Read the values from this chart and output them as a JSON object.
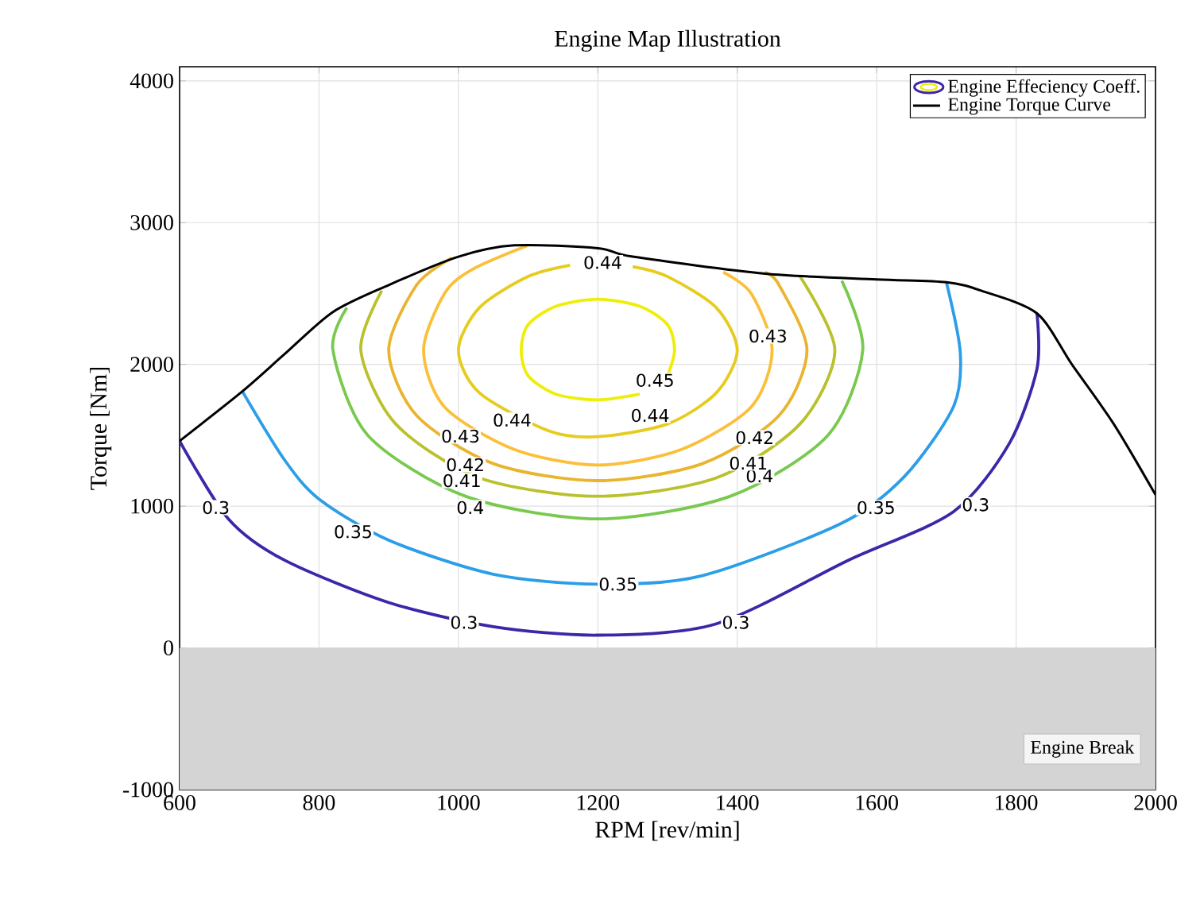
{
  "chart_data": {
    "type": "line",
    "title": "Engine Map Illustration",
    "xlabel": "RPM [rev/min]",
    "ylabel": "Torque [Nm]",
    "xlim": [
      600,
      2000
    ],
    "ylim": [
      -1000,
      4100
    ],
    "xticks": [
      600,
      800,
      1000,
      1200,
      1400,
      1600,
      1800,
      2000
    ],
    "yticks": [
      -1000,
      0,
      1000,
      2000,
      3000,
      4000
    ],
    "grid": true,
    "legend": "top right",
    "series": [
      {
        "name": "Engine Effeciency Coeff.",
        "color": "#3e26a8",
        "x": [
          600,
          670,
          750,
          900,
          1050,
          1200,
          1370,
          1560,
          1710,
          1790,
          1830,
          1830
        ],
        "values": [
          1460,
          910,
          620,
          320,
          150,
          90,
          170,
          620,
          960,
          1440,
          1970,
          2360
        ]
      },
      {
        "color": "#2c9ee8",
        "x": [
          690,
          750,
          800,
          900,
          1050,
          1200,
          1350,
          1550,
          1640,
          1710,
          1720,
          1700
        ],
        "values": [
          1810,
          1330,
          1050,
          760,
          520,
          450,
          510,
          880,
          1210,
          1700,
          2080,
          2580
        ]
      },
      {
        "color": "#7ac94f",
        "x": [
          840,
          820,
          870,
          1010,
          1200,
          1390,
          1530,
          1580,
          1550
        ],
        "values": [
          2400,
          2100,
          1500,
          1070,
          910,
          1070,
          1500,
          2100,
          2590
        ]
      },
      {
        "color": "#b9c12d",
        "x": [
          890,
          860,
          910,
          1030,
          1200,
          1370,
          1490,
          1540,
          1490
        ],
        "values": [
          2520,
          2100,
          1580,
          1200,
          1070,
          1200,
          1580,
          2100,
          2620
        ]
      },
      {
        "color": "#e9b52f",
        "x": [
          990,
          940,
          900,
          940,
          1050,
          1200,
          1350,
          1460,
          1500,
          1460,
          1440
        ],
        "values": [
          2750,
          2560,
          2100,
          1640,
          1300,
          1180,
          1300,
          1640,
          2100,
          2560,
          2650
        ]
      },
      {
        "color": "#fbbf3a",
        "x": [
          1100,
          1020,
          980,
          950,
          980,
          1080,
          1200,
          1320,
          1420,
          1450,
          1420,
          1380
        ],
        "values": [
          2840,
          2670,
          2500,
          2100,
          1700,
          1400,
          1290,
          1400,
          1700,
          2100,
          2500,
          2650
        ]
      },
      {
        "color": "#e6cc1e",
        "x": [
          1250,
          1300,
          1370,
          1400,
          1370,
          1300,
          1200,
          1130,
          1030,
          1000,
          1030,
          1100,
          1160
        ],
        "values": [
          2690,
          2620,
          2400,
          2100,
          1800,
          1580,
          1490,
          1530,
          1800,
          2100,
          2400,
          2620,
          2700
        ]
      },
      {
        "color": "#eeee0a",
        "x": [
          1300,
          1310,
          1300,
          1260,
          1200,
          1140,
          1100,
          1090,
          1100,
          1140,
          1200,
          1260
        ],
        "values": [
          1920,
          2100,
          2280,
          2410,
          2460,
          2410,
          2280,
          2100,
          1920,
          1790,
          1750,
          1790
        ]
      },
      {
        "name": "Engine Torque Curve",
        "color": "#000000",
        "x": [
          600,
          690,
          750,
          820,
          900,
          1000,
          1080,
          1200,
          1250,
          1440,
          1600,
          1700,
          1750,
          1830,
          1880,
          1940,
          2000
        ],
        "values": [
          1460,
          1810,
          2070,
          2370,
          2560,
          2760,
          2840,
          2820,
          2760,
          2640,
          2600,
          2580,
          2520,
          2360,
          2000,
          1580,
          1080
        ]
      }
    ],
    "bands": [
      {
        "axis": "y",
        "from": -1000,
        "to": 0,
        "label": "Engine Break",
        "color": "#d4d4d4"
      }
    ],
    "annotations": [
      {
        "text": "0.3",
        "x": 652,
        "y": 990
      },
      {
        "text": "0.3",
        "x": 1008,
        "y": 180
      },
      {
        "text": "0.3",
        "x": 1398,
        "y": 180
      },
      {
        "text": "0.3",
        "x": 1742,
        "y": 1010
      },
      {
        "text": "0.35",
        "x": 849,
        "y": 820
      },
      {
        "text": "0.35",
        "x": 1229,
        "y": 450
      },
      {
        "text": "0.35",
        "x": 1599,
        "y": 990
      },
      {
        "text": "0.4",
        "x": 1017,
        "y": 990
      },
      {
        "text": "0.4",
        "x": 1432,
        "y": 1213
      },
      {
        "text": "0.41",
        "x": 1005,
        "y": 1180
      },
      {
        "text": "0.41",
        "x": 1416,
        "y": 1303
      },
      {
        "text": "0.42",
        "x": 1010,
        "y": 1292
      },
      {
        "text": "0.42",
        "x": 1425,
        "y": 1483
      },
      {
        "text": "0.43",
        "x": 1003,
        "y": 1494
      },
      {
        "text": "0.43",
        "x": 1444,
        "y": 2200
      },
      {
        "text": "0.44",
        "x": 1077,
        "y": 1607
      },
      {
        "text": "0.44",
        "x": 1275,
        "y": 1640
      },
      {
        "text": "0.44",
        "x": 1207,
        "y": 2719
      },
      {
        "text": "0.45",
        "x": 1282,
        "y": 1888
      }
    ]
  }
}
